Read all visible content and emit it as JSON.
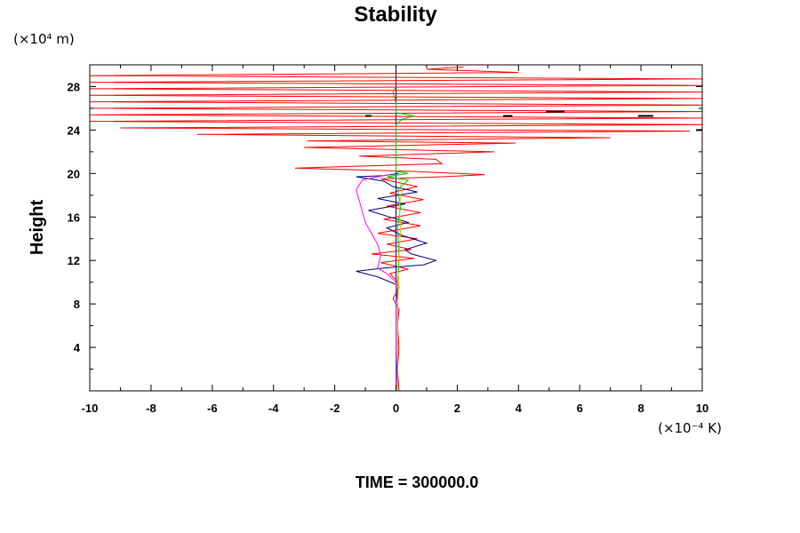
{
  "chart_data": {
    "type": "line",
    "title": "Stability",
    "ylabel": "Height",
    "xlabel": "",
    "x_unit": "(×10⁻⁴ K)",
    "y_unit": "(×10⁴ m)",
    "xlim": [
      -10,
      10
    ],
    "ylim": [
      0,
      30
    ],
    "x_ticks": [
      -10,
      -8,
      -6,
      -4,
      -2,
      0,
      2,
      4,
      6,
      8,
      10
    ],
    "y_ticks": [
      4,
      8,
      12,
      16,
      20,
      24,
      28
    ],
    "grid": false,
    "legend": "none",
    "footer": "TIME = 300000.0",
    "series": [
      {
        "color": "#ff0000",
        "points": [
          [
            0.1,
            0
          ],
          [
            0.05,
            2
          ],
          [
            0.1,
            4
          ],
          [
            0.05,
            6
          ],
          [
            0.1,
            7.5
          ],
          [
            -0.1,
            8.5
          ],
          [
            0.1,
            9.5
          ],
          [
            0,
            10.2
          ],
          [
            -0.2,
            10.8
          ],
          [
            0.4,
            11.2
          ],
          [
            -0.5,
            11.8
          ],
          [
            0.6,
            12.2
          ],
          [
            -0.8,
            12.6
          ],
          [
            0.5,
            13
          ],
          [
            -0.3,
            13.5
          ],
          [
            0.7,
            14
          ],
          [
            -0.6,
            14.5
          ],
          [
            0.8,
            15.2
          ],
          [
            -0.4,
            15.8
          ],
          [
            0.8,
            16.4
          ],
          [
            -0.3,
            17
          ],
          [
            0.9,
            17.6
          ],
          [
            -0.2,
            18.2
          ],
          [
            0.7,
            18.8
          ],
          [
            -0.5,
            19.5
          ],
          [
            1.5,
            19.7
          ],
          [
            2.9,
            19.9
          ],
          [
            0.5,
            20.2
          ],
          [
            -3.3,
            20.5
          ],
          [
            1.5,
            20.9
          ],
          [
            1.3,
            21.3
          ],
          [
            -1.2,
            21.6
          ],
          [
            3.2,
            22
          ],
          [
            -3,
            22.4
          ],
          [
            3.9,
            22.8
          ],
          [
            -2.9,
            23
          ],
          [
            7,
            23.3
          ],
          [
            -6.5,
            23.6
          ],
          [
            9.6,
            23.9
          ],
          [
            -9,
            24.2
          ],
          [
            10,
            24.5
          ],
          [
            -10,
            24.8
          ],
          [
            10,
            25.1
          ],
          [
            -10,
            25.4
          ],
          [
            10,
            25.7
          ],
          [
            -10,
            26
          ],
          [
            10,
            26.3
          ],
          [
            -10,
            26.6
          ],
          [
            10,
            26.9
          ],
          [
            -10,
            27.2
          ],
          [
            10,
            27.5
          ],
          [
            -10,
            27.8
          ],
          [
            10,
            28.1
          ],
          [
            -10,
            28.4
          ],
          [
            10,
            28.7
          ],
          [
            -10,
            29
          ],
          [
            4,
            29.3
          ],
          [
            1,
            29.6
          ],
          [
            2.2,
            29.8
          ]
        ]
      },
      {
        "color": "#000080",
        "points": [
          [
            0,
            0
          ],
          [
            0.05,
            4
          ],
          [
            0.05,
            8
          ],
          [
            0,
            9.8
          ],
          [
            -0.6,
            10.5
          ],
          [
            -1.3,
            11
          ],
          [
            -0.4,
            11.3
          ],
          [
            0.9,
            11.6
          ],
          [
            1.3,
            12
          ],
          [
            0.5,
            12.6
          ],
          [
            0.3,
            13
          ],
          [
            1,
            13.6
          ],
          [
            0.2,
            14.3
          ],
          [
            -0.3,
            15
          ],
          [
            0.4,
            15.5
          ],
          [
            -0.2,
            16
          ],
          [
            -0.9,
            16.6
          ],
          [
            0.3,
            17.2
          ],
          [
            -0.6,
            17.7
          ],
          [
            0.7,
            18.3
          ],
          [
            -0.1,
            18.8
          ],
          [
            -0.4,
            19.3
          ],
          [
            -1.3,
            19.7
          ],
          [
            -0.4,
            19.8
          ],
          [
            0.1,
            20
          ]
        ]
      },
      {
        "color": "#ff00ff",
        "points": [
          [
            0,
            0
          ],
          [
            0,
            8
          ],
          [
            0,
            10
          ],
          [
            -0.3,
            10.8
          ],
          [
            -0.6,
            11.3
          ],
          [
            -0.5,
            12.5
          ],
          [
            -0.6,
            13.5
          ],
          [
            -0.8,
            14.5
          ],
          [
            -1,
            15.5
          ],
          [
            -1.1,
            16.5
          ],
          [
            -1.2,
            17.5
          ],
          [
            -1.3,
            18.5
          ],
          [
            -1.1,
            19.4
          ],
          [
            -0.6,
            19.7
          ],
          [
            -0.2,
            19.9
          ]
        ]
      },
      {
        "color": "#00cc00",
        "points": [
          [
            0.05,
            0
          ],
          [
            0.05,
            10
          ],
          [
            0.1,
            12
          ],
          [
            0.05,
            15
          ],
          [
            0.15,
            17
          ],
          [
            0.05,
            18.5
          ],
          [
            0.4,
            19.4
          ],
          [
            -0.3,
            19.7
          ],
          [
            0.4,
            20
          ],
          [
            0,
            20.2
          ],
          [
            0,
            24.5
          ],
          [
            0.2,
            25
          ],
          [
            0.6,
            25.3
          ],
          [
            0,
            25.6
          ],
          [
            0,
            26.5
          ],
          [
            -0.1,
            27.5
          ],
          [
            0,
            28
          ]
        ]
      },
      {
        "color": "#cccc00",
        "points": [
          [
            0.05,
            0
          ],
          [
            0.05,
            8
          ],
          [
            0.1,
            10
          ],
          [
            0.05,
            11.2
          ],
          [
            0.1,
            12.5
          ],
          [
            0.15,
            15
          ],
          [
            0.1,
            17
          ],
          [
            0.2,
            18.5
          ],
          [
            0.1,
            19.6
          ]
        ]
      }
    ],
    "dashes": [
      {
        "color": "#000000",
        "x1": -1,
        "x2": -0.8,
        "y": 25.3
      },
      {
        "color": "#000000",
        "x1": 3.5,
        "x2": 3.8,
        "y": 25.3
      },
      {
        "color": "#000000",
        "x1": 4.9,
        "x2": 5.5,
        "y": 25.7
      },
      {
        "color": "#000000",
        "x1": 7.9,
        "x2": 8.4,
        "y": 25.3
      },
      {
        "color": "#000000",
        "x1": 9.8,
        "x2": 10,
        "y": 24
      }
    ]
  }
}
